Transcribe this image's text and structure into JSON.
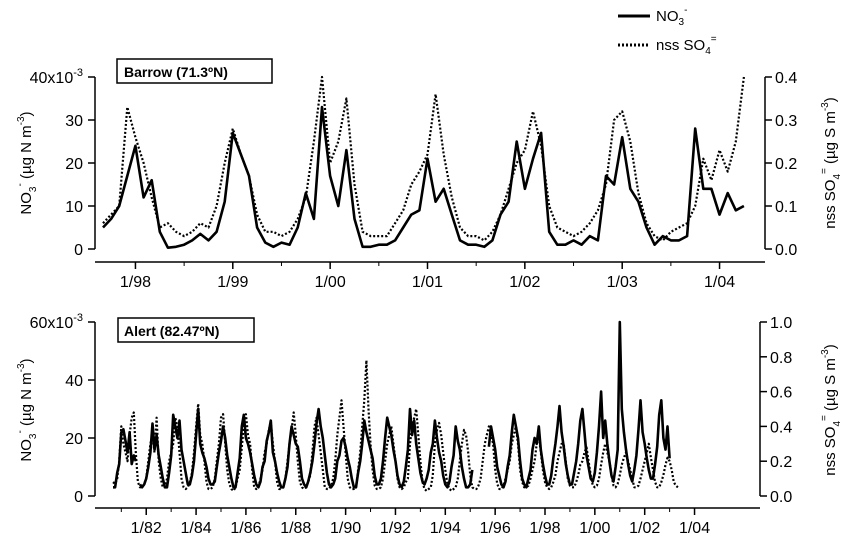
{
  "legend": {
    "no3_label": "NO",
    "no3_sub": "3",
    "no3_sup": "-",
    "so4_label": "nss SO",
    "so4_sub": "4",
    "so4_sup": "="
  },
  "chart_data": [
    {
      "type": "line",
      "panel": "top",
      "station_label": "Barrow (71.3ºN)",
      "x_start": "1997-09",
      "x_step_months": 1,
      "x_ticks": [
        "1/98",
        "1/99",
        "1/00",
        "1/01",
        "1/02",
        "1/03",
        "1/04"
      ],
      "y_left": {
        "ticks": [
          "40x10",
          "30",
          "20",
          "10",
          "0"
        ],
        "tick_exp": "-3",
        "lim": [
          0,
          0.04
        ],
        "label_parts": [
          "NO",
          "3",
          "-",
          "  (µg N m",
          "-3",
          ")"
        ]
      },
      "y_right": {
        "ticks": [
          "0.4",
          "0.3",
          "0.2",
          "0.1",
          "0.0"
        ],
        "lim": [
          0,
          0.4
        ],
        "label_parts": [
          "nss SO",
          "4",
          "=",
          "  (µg S m",
          "-3",
          ")"
        ]
      },
      "series": [
        {
          "name": "NO3-",
          "axis": "left",
          "style": "solid",
          "values": [
            0.005,
            0.007,
            0.01,
            0.017,
            0.024,
            0.012,
            0.016,
            0.004,
            0.0003,
            0.0005,
            0.001,
            0.002,
            0.0035,
            0.002,
            0.004,
            0.011,
            0.027,
            0.022,
            0.017,
            0.005,
            0.0015,
            0.0005,
            0.0015,
            0.001,
            0.005,
            0.013,
            0.007,
            0.033,
            0.017,
            0.01,
            0.023,
            0.007,
            0.0005,
            0.0005,
            0.001,
            0.001,
            0.002,
            0.005,
            0.008,
            0.009,
            0.021,
            0.011,
            0.014,
            0.008,
            0.002,
            0.001,
            0.001,
            0.0005,
            0.002,
            0.008,
            0.011,
            0.025,
            0.014,
            0.021,
            0.027,
            0.004,
            0.001,
            0.001,
            0.002,
            0.001,
            0.003,
            0.002,
            0.017,
            0.015,
            0.026,
            0.014,
            0.011,
            0.005,
            0.001,
            0.003,
            0.002,
            0.002,
            0.003,
            0.028,
            0.014,
            0.014,
            0.008,
            0.013,
            0.009,
            0.01
          ]
        },
        {
          "name": "nss SO4=",
          "axis": "right",
          "style": "dotted",
          "values": [
            0.06,
            0.08,
            0.1,
            0.33,
            0.26,
            0.2,
            0.12,
            0.05,
            0.06,
            0.04,
            0.03,
            0.04,
            0.06,
            0.05,
            0.1,
            0.2,
            0.28,
            0.22,
            0.17,
            0.08,
            0.04,
            0.04,
            0.03,
            0.04,
            0.07,
            0.12,
            0.25,
            0.4,
            0.2,
            0.25,
            0.35,
            0.15,
            0.04,
            0.03,
            0.03,
            0.03,
            0.06,
            0.09,
            0.15,
            0.18,
            0.22,
            0.36,
            0.22,
            0.12,
            0.05,
            0.03,
            0.03,
            0.02,
            0.04,
            0.08,
            0.14,
            0.2,
            0.23,
            0.32,
            0.24,
            0.1,
            0.05,
            0.04,
            0.03,
            0.04,
            0.06,
            0.09,
            0.15,
            0.3,
            0.32,
            0.25,
            0.13,
            0.06,
            0.03,
            0.02,
            0.04,
            0.05,
            0.06,
            0.1,
            0.21,
            0.16,
            0.23,
            0.18,
            0.25,
            0.4
          ]
        }
      ]
    },
    {
      "type": "line",
      "panel": "bottom",
      "station_label": "Alert (82.47ºN)",
      "x_start": "1980-09",
      "x_step_months": 1,
      "x_ticks": [
        "1/82",
        "1/84",
        "1/86",
        "1/88",
        "1/90",
        "1/92",
        "1/94",
        "1/96",
        "1/98",
        "1/00",
        "1/02",
        "1/04"
      ],
      "y_left": {
        "ticks": [
          "60x10",
          "40",
          "20",
          "0"
        ],
        "tick_exp": "-3",
        "lim": [
          0,
          0.06
        ],
        "label_parts": [
          "NO",
          "3",
          "-",
          "  (µg N m",
          "-3",
          ")"
        ]
      },
      "y_right": {
        "ticks": [
          "1.0",
          "0.8",
          "0.6",
          "0.4",
          "0.2",
          "0.0"
        ],
        "lim": [
          0,
          1.0
        ],
        "label_parts": [
          "nss SO",
          "4",
          "=",
          "  (µg S m",
          "-3",
          ")"
        ]
      },
      "series": [
        {
          "name": "NO3-",
          "axis": "left",
          "style": "solid",
          "values": [
            0.003,
            0.003,
            0.008,
            0.011,
            0.022,
            0.023,
            0.019,
            0.015,
            0.022,
            0.011,
            0.014,
            0.012,
            null,
            0.004,
            0.003,
            0.004,
            0.006,
            0.01,
            0.015,
            0.025,
            0.016,
            0.021,
            0.014,
            0.01,
            0.006,
            0.003,
            0.003,
            0.008,
            0.014,
            0.028,
            0.024,
            0.02,
            0.026,
            0.016,
            0.012,
            0.008,
            0.004,
            0.004,
            0.007,
            0.012,
            0.021,
            0.03,
            0.018,
            0.015,
            0.013,
            0.01,
            0.006,
            0.004,
            0.004,
            0.005,
            0.01,
            0.015,
            0.019,
            0.024,
            0.02,
            0.014,
            0.01,
            0.006,
            0.003,
            0.003,
            0.008,
            0.013,
            0.024,
            0.028,
            0.02,
            0.018,
            0.015,
            0.011,
            0.007,
            0.004,
            0.003,
            0.005,
            0.01,
            0.012,
            0.019,
            0.022,
            0.026,
            0.015,
            0.012,
            0.008,
            0.005,
            0.003,
            0.003,
            0.006,
            0.01,
            0.018,
            0.024,
            0.021,
            0.018,
            0.017,
            0.012,
            0.006,
            0.004,
            0.003,
            0.005,
            0.008,
            0.012,
            0.018,
            0.025,
            0.03,
            0.024,
            0.02,
            0.014,
            0.008,
            0.004,
            0.003,
            0.004,
            0.006,
            0.012,
            0.014,
            0.019,
            0.02,
            0.017,
            0.013,
            0.01,
            0.006,
            0.003,
            0.003,
            0.008,
            0.012,
            0.018,
            0.026,
            0.022,
            0.019,
            0.016,
            0.013,
            0.007,
            0.004,
            0.004,
            0.006,
            0.012,
            0.02,
            0.027,
            0.024,
            0.021,
            0.016,
            0.012,
            0.007,
            0.004,
            0.003,
            0.005,
            0.01,
            0.016,
            0.03,
            0.021,
            0.026,
            0.018,
            0.013,
            0.008,
            0.005,
            0.004,
            0.006,
            0.009,
            0.015,
            0.018,
            0.026,
            0.02,
            0.015,
            0.012,
            0.007,
            0.004,
            0.003,
            0.005,
            0.01,
            0.014,
            0.024,
            0.019,
            0.016,
            0.01,
            0.006,
            0.003,
            0.003,
            0.004,
            0.009,
            null,
            null,
            null,
            null,
            null,
            null,
            null,
            0.017,
            0.024,
            0.02,
            0.016,
            0.01,
            0.007,
            0.004,
            0.003,
            0.005,
            0.01,
            0.014,
            0.022,
            0.028,
            0.024,
            0.02,
            0.012,
            0.006,
            0.004,
            0.003,
            0.006,
            0.009,
            0.016,
            0.02,
            0.018,
            0.024,
            0.016,
            0.011,
            0.007,
            0.004,
            0.004,
            0.007,
            0.013,
            0.018,
            0.024,
            0.031,
            0.022,
            0.017,
            0.011,
            0.007,
            0.004,
            0.004,
            0.008,
            0.012,
            0.018,
            0.026,
            0.03,
            0.022,
            0.014,
            0.01,
            0.006,
            0.005,
            0.008,
            0.015,
            0.024,
            0.036,
            0.02,
            0.026,
            0.018,
            0.012,
            0.007,
            0.005,
            0.01,
            0.016,
            0.06,
            0.03,
            0.022,
            0.016,
            0.011,
            0.007,
            0.005,
            0.009,
            0.014,
            0.023,
            0.033,
            0.022,
            0.018,
            0.013,
            0.009,
            0.006,
            0.006,
            0.011,
            0.017,
            0.028,
            0.033,
            0.02,
            0.016,
            0.024,
            0.013
          ]
        },
        {
          "name": "nss SO4=",
          "axis": "right",
          "style": "dotted",
          "values": [
            0.08,
            0.07,
            0.1,
            0.2,
            0.4,
            0.3,
            0.25,
            0.2,
            0.35,
            0.45,
            0.48,
            0.25,
            0.08,
            0.05,
            0.05,
            0.07,
            0.1,
            0.2,
            0.3,
            0.35,
            0.25,
            0.45,
            0.2,
            0.1,
            0.05,
            0.05,
            0.1,
            0.2,
            0.25,
            0.3,
            0.45,
            0.4,
            0.25,
            0.1,
            0.05,
            0.04,
            0.05,
            0.08,
            0.13,
            0.25,
            0.4,
            0.53,
            0.35,
            0.3,
            0.2,
            0.08,
            0.04,
            0.04,
            0.05,
            0.1,
            0.2,
            0.3,
            0.45,
            0.47,
            0.3,
            0.15,
            0.07,
            0.04,
            0.03,
            0.05,
            0.1,
            0.15,
            0.28,
            0.4,
            0.47,
            0.35,
            0.3,
            0.15,
            0.05,
            0.04,
            0.05,
            0.1,
            0.15,
            0.25,
            0.3,
            0.38,
            0.42,
            0.3,
            0.2,
            0.08,
            0.04,
            0.04,
            0.05,
            0.1,
            0.2,
            0.3,
            0.38,
            0.48,
            0.35,
            0.2,
            0.08,
            0.05,
            0.04,
            0.05,
            0.08,
            0.12,
            0.25,
            0.4,
            0.45,
            0.35,
            0.25,
            0.15,
            0.05,
            0.04,
            0.04,
            0.06,
            0.1,
            0.2,
            0.35,
            0.45,
            0.55,
            0.4,
            0.25,
            0.1,
            0.05,
            0.04,
            0.04,
            0.05,
            0.15,
            0.25,
            0.4,
            0.55,
            0.78,
            0.5,
            0.3,
            0.15,
            0.06,
            0.04,
            0.04,
            0.05,
            0.1,
            0.2,
            0.3,
            0.35,
            0.4,
            0.3,
            0.2,
            0.1,
            0.05,
            0.04,
            0.05,
            0.08,
            0.1,
            0.3,
            0.4,
            0.45,
            0.5,
            0.35,
            0.2,
            0.08,
            0.04,
            0.03,
            0.04,
            0.05,
            0.12,
            0.3,
            0.38,
            0.42,
            0.35,
            0.25,
            0.15,
            0.07,
            0.04,
            0.03,
            0.04,
            0.05,
            0.1,
            0.2,
            0.3,
            0.38,
            0.35,
            0.25,
            0.12,
            0.05,
            0.04,
            0.04,
            0.06,
            0.1,
            0.2,
            0.3,
            0.35,
            0.4,
            0.35,
            0.3,
            0.15,
            0.07,
            0.04,
            0.04,
            0.06,
            0.1,
            0.15,
            0.2,
            0.3,
            0.35,
            0.4,
            0.3,
            0.15,
            0.08,
            0.05,
            0.05,
            0.06,
            0.1,
            0.15,
            0.2,
            0.3,
            0.35,
            0.25,
            0.15,
            0.08,
            0.05,
            0.04,
            0.05,
            0.08,
            0.12,
            0.2,
            0.25,
            0.3,
            0.3,
            0.2,
            0.1,
            0.06,
            0.05,
            0.05,
            0.08,
            0.12,
            0.18,
            0.2,
            0.25,
            0.28,
            0.2,
            0.12,
            0.06,
            0.05,
            0.06,
            0.1,
            0.18,
            0.25,
            0.3,
            0.25,
            0.2,
            0.12,
            0.06,
            0.05,
            0.07,
            0.12,
            0.18,
            0.22,
            0.25,
            0.2,
            0.15,
            0.1,
            0.05,
            0.05,
            0.06,
            0.1,
            0.15,
            0.2,
            0.25,
            0.3,
            0.22,
            0.15,
            0.08,
            0.05,
            0.05,
            0.08,
            0.12,
            0.18,
            0.22,
            0.2,
            0.15,
            0.08,
            0.06,
            0.05
          ]
        }
      ]
    }
  ]
}
